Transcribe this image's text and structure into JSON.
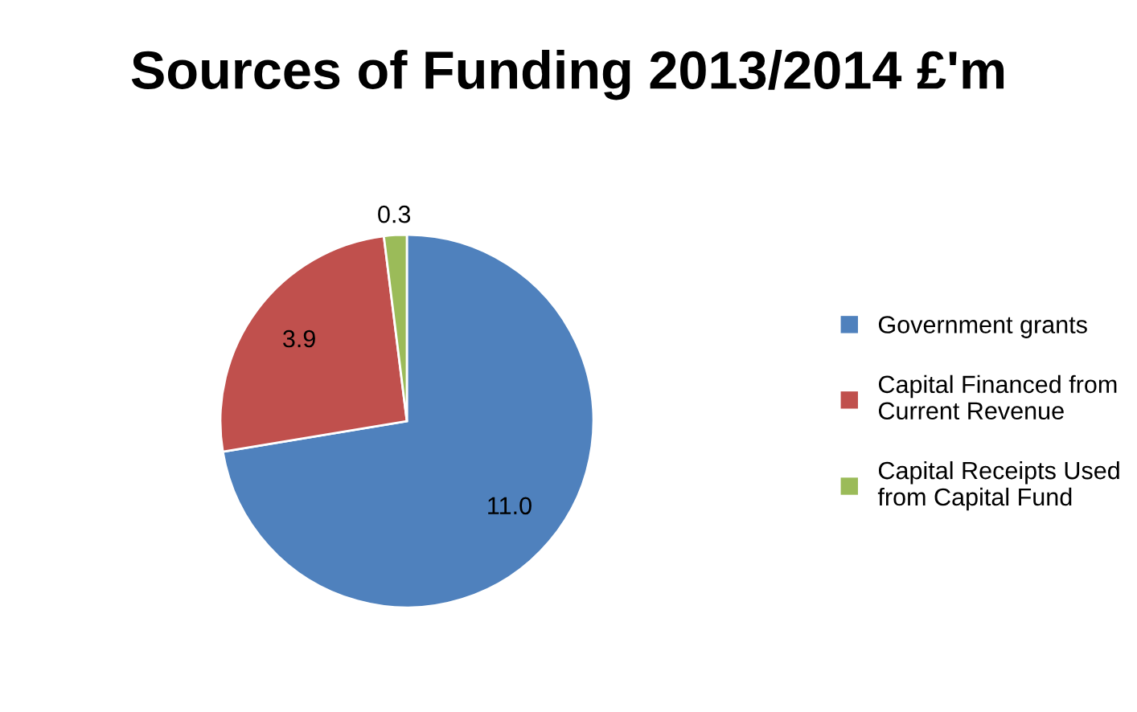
{
  "chart_data": {
    "type": "pie",
    "title": "Sources of Funding 2013/2014 £'m",
    "categories": [
      "Government grants",
      "Capital Financed from Current Revenue",
      "Capital Receipts Used from Capital Fund"
    ],
    "values": [
      11.0,
      3.9,
      0.3
    ],
    "value_labels": [
      "11.0",
      "3.9",
      "0.3"
    ],
    "colors": [
      "#4f81bd",
      "#c0504d",
      "#9bbb59"
    ],
    "legend": "right"
  }
}
